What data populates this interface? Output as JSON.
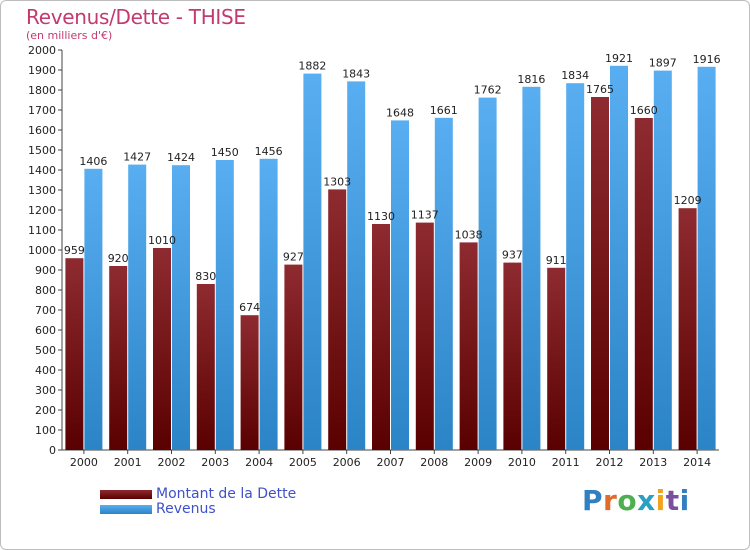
{
  "header": {
    "title": "Revenus/Dette - THISE",
    "subtitle": "(en milliers d'€)"
  },
  "chart_data": {
    "type": "bar",
    "title": "Revenus/Dette - THISE",
    "subtitle": "(en milliers d'€)",
    "categories": [
      "2000",
      "2001",
      "2002",
      "2003",
      "2004",
      "2005",
      "2006",
      "2007",
      "2008",
      "2009",
      "2010",
      "2011",
      "2012",
      "2013",
      "2014"
    ],
    "series": [
      {
        "name": "Montant de la Dette",
        "color": "#8b1a1a",
        "values": [
          959,
          920,
          1010,
          830,
          674,
          927,
          1303,
          1130,
          1137,
          1038,
          937,
          911,
          1765,
          1660,
          1209
        ]
      },
      {
        "name": "Revenus",
        "color": "#4da6e8",
        "values": [
          1406,
          1427,
          1424,
          1450,
          1456,
          1882,
          1843,
          1648,
          1661,
          1762,
          1816,
          1834,
          1921,
          1897,
          1916
        ]
      }
    ],
    "ylim": [
      0,
      2000
    ],
    "ytick_step": 100,
    "grid": false,
    "legend": "bottom-left"
  },
  "legend": {
    "items": [
      {
        "label": "Montant de la Dette"
      },
      {
        "label": "Revenus"
      }
    ]
  },
  "logo": {
    "text": "Proxiti"
  }
}
